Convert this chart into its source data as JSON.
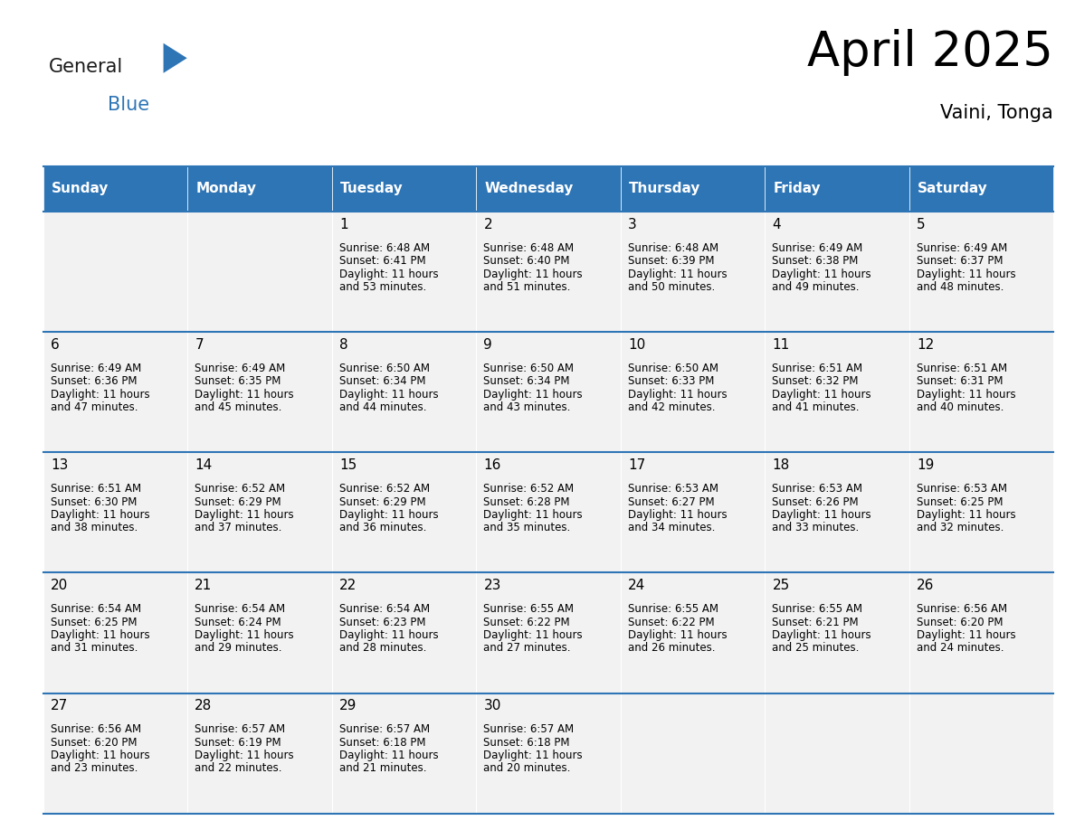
{
  "title": "April 2025",
  "subtitle": "Vaini, Tonga",
  "header_bg": "#2E75B6",
  "header_text": "#FFFFFF",
  "cell_bg_light": "#F2F2F2",
  "border_color": "#2E75B6",
  "text_color": "#000000",
  "days_of_week": [
    "Sunday",
    "Monday",
    "Tuesday",
    "Wednesday",
    "Thursday",
    "Friday",
    "Saturday"
  ],
  "weeks": [
    [
      {
        "day": "",
        "sunrise": "",
        "sunset": "",
        "daylight1": "",
        "daylight2": ""
      },
      {
        "day": "",
        "sunrise": "",
        "sunset": "",
        "daylight1": "",
        "daylight2": ""
      },
      {
        "day": "1",
        "sunrise": "Sunrise: 6:48 AM",
        "sunset": "Sunset: 6:41 PM",
        "daylight1": "Daylight: 11 hours",
        "daylight2": "and 53 minutes."
      },
      {
        "day": "2",
        "sunrise": "Sunrise: 6:48 AM",
        "sunset": "Sunset: 6:40 PM",
        "daylight1": "Daylight: 11 hours",
        "daylight2": "and 51 minutes."
      },
      {
        "day": "3",
        "sunrise": "Sunrise: 6:48 AM",
        "sunset": "Sunset: 6:39 PM",
        "daylight1": "Daylight: 11 hours",
        "daylight2": "and 50 minutes."
      },
      {
        "day": "4",
        "sunrise": "Sunrise: 6:49 AM",
        "sunset": "Sunset: 6:38 PM",
        "daylight1": "Daylight: 11 hours",
        "daylight2": "and 49 minutes."
      },
      {
        "day": "5",
        "sunrise": "Sunrise: 6:49 AM",
        "sunset": "Sunset: 6:37 PM",
        "daylight1": "Daylight: 11 hours",
        "daylight2": "and 48 minutes."
      }
    ],
    [
      {
        "day": "6",
        "sunrise": "Sunrise: 6:49 AM",
        "sunset": "Sunset: 6:36 PM",
        "daylight1": "Daylight: 11 hours",
        "daylight2": "and 47 minutes."
      },
      {
        "day": "7",
        "sunrise": "Sunrise: 6:49 AM",
        "sunset": "Sunset: 6:35 PM",
        "daylight1": "Daylight: 11 hours",
        "daylight2": "and 45 minutes."
      },
      {
        "day": "8",
        "sunrise": "Sunrise: 6:50 AM",
        "sunset": "Sunset: 6:34 PM",
        "daylight1": "Daylight: 11 hours",
        "daylight2": "and 44 minutes."
      },
      {
        "day": "9",
        "sunrise": "Sunrise: 6:50 AM",
        "sunset": "Sunset: 6:34 PM",
        "daylight1": "Daylight: 11 hours",
        "daylight2": "and 43 minutes."
      },
      {
        "day": "10",
        "sunrise": "Sunrise: 6:50 AM",
        "sunset": "Sunset: 6:33 PM",
        "daylight1": "Daylight: 11 hours",
        "daylight2": "and 42 minutes."
      },
      {
        "day": "11",
        "sunrise": "Sunrise: 6:51 AM",
        "sunset": "Sunset: 6:32 PM",
        "daylight1": "Daylight: 11 hours",
        "daylight2": "and 41 minutes."
      },
      {
        "day": "12",
        "sunrise": "Sunrise: 6:51 AM",
        "sunset": "Sunset: 6:31 PM",
        "daylight1": "Daylight: 11 hours",
        "daylight2": "and 40 minutes."
      }
    ],
    [
      {
        "day": "13",
        "sunrise": "Sunrise: 6:51 AM",
        "sunset": "Sunset: 6:30 PM",
        "daylight1": "Daylight: 11 hours",
        "daylight2": "and 38 minutes."
      },
      {
        "day": "14",
        "sunrise": "Sunrise: 6:52 AM",
        "sunset": "Sunset: 6:29 PM",
        "daylight1": "Daylight: 11 hours",
        "daylight2": "and 37 minutes."
      },
      {
        "day": "15",
        "sunrise": "Sunrise: 6:52 AM",
        "sunset": "Sunset: 6:29 PM",
        "daylight1": "Daylight: 11 hours",
        "daylight2": "and 36 minutes."
      },
      {
        "day": "16",
        "sunrise": "Sunrise: 6:52 AM",
        "sunset": "Sunset: 6:28 PM",
        "daylight1": "Daylight: 11 hours",
        "daylight2": "and 35 minutes."
      },
      {
        "day": "17",
        "sunrise": "Sunrise: 6:53 AM",
        "sunset": "Sunset: 6:27 PM",
        "daylight1": "Daylight: 11 hours",
        "daylight2": "and 34 minutes."
      },
      {
        "day": "18",
        "sunrise": "Sunrise: 6:53 AM",
        "sunset": "Sunset: 6:26 PM",
        "daylight1": "Daylight: 11 hours",
        "daylight2": "and 33 minutes."
      },
      {
        "day": "19",
        "sunrise": "Sunrise: 6:53 AM",
        "sunset": "Sunset: 6:25 PM",
        "daylight1": "Daylight: 11 hours",
        "daylight2": "and 32 minutes."
      }
    ],
    [
      {
        "day": "20",
        "sunrise": "Sunrise: 6:54 AM",
        "sunset": "Sunset: 6:25 PM",
        "daylight1": "Daylight: 11 hours",
        "daylight2": "and 31 minutes."
      },
      {
        "day": "21",
        "sunrise": "Sunrise: 6:54 AM",
        "sunset": "Sunset: 6:24 PM",
        "daylight1": "Daylight: 11 hours",
        "daylight2": "and 29 minutes."
      },
      {
        "day": "22",
        "sunrise": "Sunrise: 6:54 AM",
        "sunset": "Sunset: 6:23 PM",
        "daylight1": "Daylight: 11 hours",
        "daylight2": "and 28 minutes."
      },
      {
        "day": "23",
        "sunrise": "Sunrise: 6:55 AM",
        "sunset": "Sunset: 6:22 PM",
        "daylight1": "Daylight: 11 hours",
        "daylight2": "and 27 minutes."
      },
      {
        "day": "24",
        "sunrise": "Sunrise: 6:55 AM",
        "sunset": "Sunset: 6:22 PM",
        "daylight1": "Daylight: 11 hours",
        "daylight2": "and 26 minutes."
      },
      {
        "day": "25",
        "sunrise": "Sunrise: 6:55 AM",
        "sunset": "Sunset: 6:21 PM",
        "daylight1": "Daylight: 11 hours",
        "daylight2": "and 25 minutes."
      },
      {
        "day": "26",
        "sunrise": "Sunrise: 6:56 AM",
        "sunset": "Sunset: 6:20 PM",
        "daylight1": "Daylight: 11 hours",
        "daylight2": "and 24 minutes."
      }
    ],
    [
      {
        "day": "27",
        "sunrise": "Sunrise: 6:56 AM",
        "sunset": "Sunset: 6:20 PM",
        "daylight1": "Daylight: 11 hours",
        "daylight2": "and 23 minutes."
      },
      {
        "day": "28",
        "sunrise": "Sunrise: 6:57 AM",
        "sunset": "Sunset: 6:19 PM",
        "daylight1": "Daylight: 11 hours",
        "daylight2": "and 22 minutes."
      },
      {
        "day": "29",
        "sunrise": "Sunrise: 6:57 AM",
        "sunset": "Sunset: 6:18 PM",
        "daylight1": "Daylight: 11 hours",
        "daylight2": "and 21 minutes."
      },
      {
        "day": "30",
        "sunrise": "Sunrise: 6:57 AM",
        "sunset": "Sunset: 6:18 PM",
        "daylight1": "Daylight: 11 hours",
        "daylight2": "and 20 minutes."
      },
      {
        "day": "",
        "sunrise": "",
        "sunset": "",
        "daylight1": "",
        "daylight2": ""
      },
      {
        "day": "",
        "sunrise": "",
        "sunset": "",
        "daylight1": "",
        "daylight2": ""
      },
      {
        "day": "",
        "sunrise": "",
        "sunset": "",
        "daylight1": "",
        "daylight2": ""
      }
    ]
  ],
  "logo_general_color": "#1A1A1A",
  "logo_blue_color": "#2E75B6"
}
